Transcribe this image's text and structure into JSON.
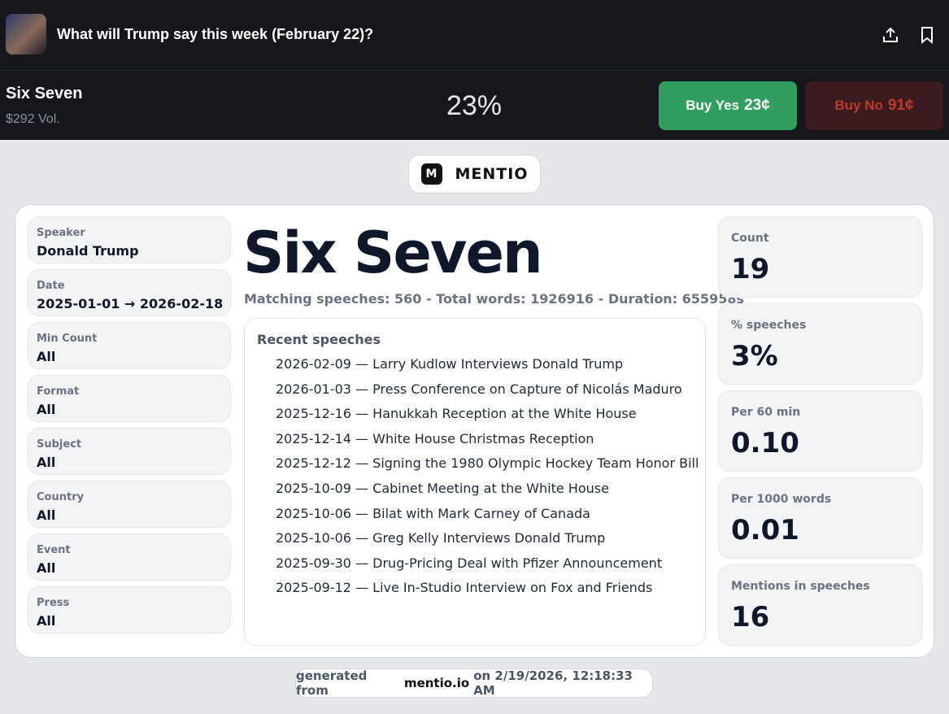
{
  "header": {
    "title": "What will Trump say this week (February 22)?"
  },
  "market": {
    "name": "Six Seven",
    "volume": "$292 Vol.",
    "probability": "23%",
    "buy_yes": {
      "label": "Buy Yes",
      "price": "23¢"
    },
    "buy_no": {
      "label": "Buy No",
      "price": "91¢"
    }
  },
  "brand": {
    "icon": "M",
    "name": "MENTIO"
  },
  "filters": [
    {
      "label": "Speaker",
      "value": "Donald Trump"
    },
    {
      "label": "Date",
      "value": "2025-01-01 → 2026-02-18"
    },
    {
      "label": "Min Count",
      "value": "All"
    },
    {
      "label": "Format",
      "value": "All"
    },
    {
      "label": "Subject",
      "value": "All"
    },
    {
      "label": "Country",
      "value": "All"
    },
    {
      "label": "Event",
      "value": "All"
    },
    {
      "label": "Press",
      "value": "All"
    }
  ],
  "phrase": "Six Seven",
  "summary": "Matching speeches: 560 - Total words: 1926916 - Duration: 655958s",
  "recent": {
    "title": "Recent speeches",
    "items": [
      "2026-02-09 — Larry Kudlow Interviews Donald Trump",
      "2026-01-03 — Press Conference on Capture of Nicolás Maduro",
      "2025-12-16 — Hanukkah Reception at the White House",
      "2025-12-14 — White House Christmas Reception",
      "2025-12-12 — Signing the 1980 Olympic Hockey Team Honor Bill",
      "2025-10-09 — Cabinet Meeting at the White House",
      "2025-10-06 — Bilat with Mark Carney of Canada",
      "2025-10-06 — Greg Kelly Interviews Donald Trump",
      "2025-09-30 — Drug-Pricing Deal with Pfizer Announcement",
      "2025-09-12 — Live In-Studio Interview on Fox and Friends"
    ]
  },
  "stats": [
    {
      "label": "Count",
      "value": "19"
    },
    {
      "label": "% speeches",
      "value": "3%"
    },
    {
      "label": "Per 60 min",
      "value": "0.10"
    },
    {
      "label": "Per 1000 words",
      "value": "0.01"
    },
    {
      "label": "Mentions in speeches",
      "value": "16"
    }
  ],
  "footer": {
    "prefix": "generated from",
    "site": "mentio.io",
    "suffix": "on 2/19/2026, 12:18:33 AM"
  }
}
